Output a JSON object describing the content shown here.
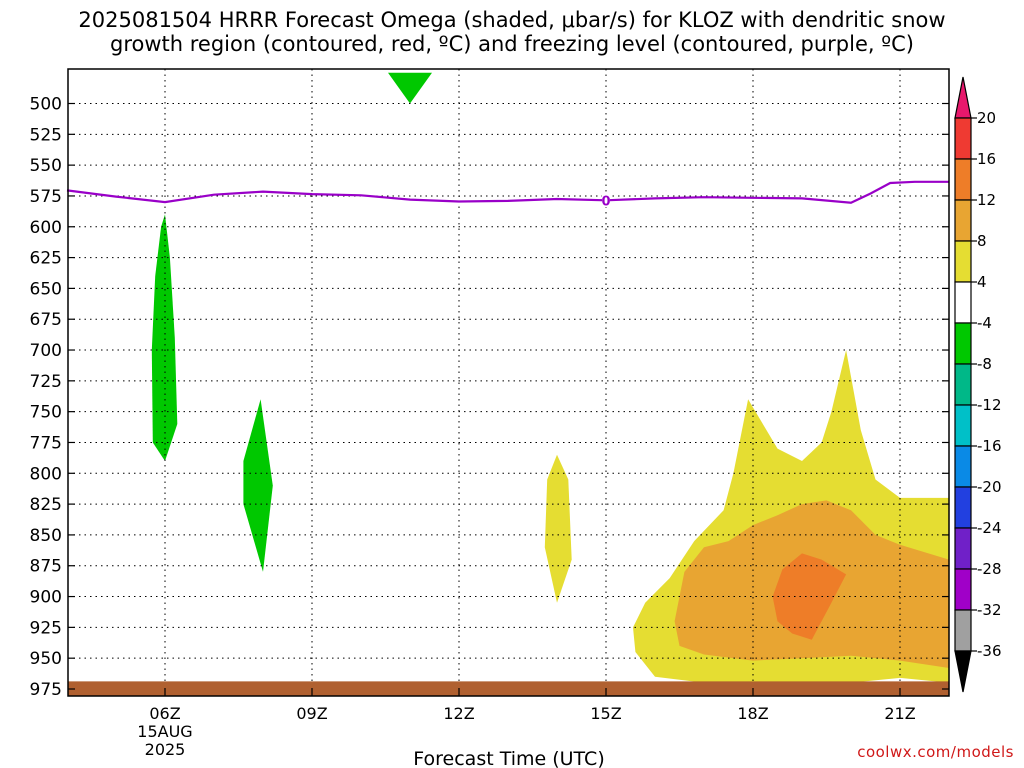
{
  "title": {
    "line1": "2025081504 HRRR Forecast Omega (shaded, μbar/s) for KLOZ with dendritic snow",
    "line2": "growth region (contoured, red, ºC) and freezing level (contoured, purple, ºC)"
  },
  "credit": "coolwx.com/models",
  "chart_data": {
    "type": "heatmap",
    "xlabel": "Forecast Time (UTC)",
    "ylabel": "",
    "x_unit": "hours UTC, 15 Aug 2025",
    "xlim": [
      4,
      22
    ],
    "ylim": [
      975,
      475
    ],
    "y_ticks": [
      500,
      525,
      550,
      575,
      600,
      625,
      650,
      675,
      700,
      725,
      750,
      775,
      800,
      825,
      850,
      875,
      900,
      925,
      950,
      975
    ],
    "x_ticks": [
      {
        "hour": 6,
        "label": "06Z",
        "sub1": "15AUG",
        "sub2": "2025"
      },
      {
        "hour": 9,
        "label": "09Z",
        "sub1": "",
        "sub2": ""
      },
      {
        "hour": 12,
        "label": "12Z",
        "sub1": "",
        "sub2": ""
      },
      {
        "hour": 15,
        "label": "15Z",
        "sub1": "",
        "sub2": ""
      },
      {
        "hour": 18,
        "label": "18Z",
        "sub1": "",
        "sub2": ""
      },
      {
        "hour": 21,
        "label": "21Z",
        "sub1": "",
        "sub2": ""
      }
    ],
    "grid": true,
    "colorbar": {
      "labels": [
        "20",
        "16",
        "12",
        "8",
        "4",
        "-4",
        "-8",
        "-12",
        "-16",
        "-20",
        "-24",
        "-28",
        "-32",
        "-36"
      ],
      "bands": [
        {
          "color": "#e8186c"
        },
        {
          "color": "#ef3a32"
        },
        {
          "color": "#ee7d28"
        },
        {
          "color": "#e8a532"
        },
        {
          "color": "#e5dd32"
        },
        {
          "color": "#ffffff"
        },
        {
          "color": "#00c800"
        },
        {
          "color": "#00b888"
        },
        {
          "color": "#00c0c8"
        },
        {
          "color": "#0a8ae6"
        },
        {
          "color": "#2240e0"
        },
        {
          "color": "#7020c8"
        },
        {
          "color": "#a000c8"
        },
        {
          "color": "#a0a0a0"
        },
        {
          "color": "#000000"
        }
      ]
    },
    "freezing_level": {
      "color": "#9900c8",
      "label": "0",
      "label_hour": 15.0,
      "points": [
        [
          4.0,
          570.5
        ],
        [
          5.0,
          575.5
        ],
        [
          6.0,
          580.0
        ],
        [
          7.0,
          574.0
        ],
        [
          8.0,
          571.5
        ],
        [
          9.0,
          573.5
        ],
        [
          10.0,
          574.5
        ],
        [
          11.0,
          578.0
        ],
        [
          12.0,
          579.5
        ],
        [
          13.0,
          579.0
        ],
        [
          14.0,
          577.5
        ],
        [
          15.0,
          578.5
        ],
        [
          16.0,
          577.0
        ],
        [
          17.0,
          576.0
        ],
        [
          18.0,
          576.5
        ],
        [
          19.0,
          577.0
        ],
        [
          20.0,
          580.5
        ],
        [
          20.4,
          573.0
        ],
        [
          20.8,
          564.5
        ],
        [
          21.3,
          563.5
        ],
        [
          22.0,
          563.5
        ]
      ]
    },
    "shaded_regions": [
      {
        "name": "descent-0600",
        "value": -6,
        "color": "#00c800",
        "points": [
          [
            6.0,
            590.0
          ],
          [
            6.1,
            625.0
          ],
          [
            6.2,
            690.0
          ],
          [
            6.25,
            760.0
          ],
          [
            6.0,
            790.0
          ],
          [
            5.75,
            775.0
          ],
          [
            5.73,
            700.0
          ],
          [
            5.8,
            640.0
          ],
          [
            5.92,
            600.0
          ]
        ]
      },
      {
        "name": "descent-0800",
        "value": -6,
        "color": "#00c800",
        "points": [
          [
            7.95,
            740.0
          ],
          [
            8.2,
            810.0
          ],
          [
            8.0,
            880.0
          ],
          [
            7.6,
            825.0
          ],
          [
            7.6,
            790.0
          ]
        ]
      },
      {
        "name": "descent-1100",
        "value": -6,
        "color": "#00c800",
        "points": [
          [
            10.55,
            475.0
          ],
          [
            11.45,
            475.0
          ],
          [
            11.0,
            500.0
          ]
        ]
      },
      {
        "name": "ascent-1400",
        "value": 6,
        "color": "#e5dd32",
        "points": [
          [
            14.0,
            785.0
          ],
          [
            14.23,
            805.0
          ],
          [
            14.3,
            870.0
          ],
          [
            14.0,
            905.0
          ],
          [
            13.75,
            860.0
          ],
          [
            13.8,
            805.0
          ]
        ]
      },
      {
        "name": "ascent-outer",
        "value": 6,
        "color": "#e5dd32",
        "points": [
          [
            15.55,
            925.0
          ],
          [
            15.8,
            905.0
          ],
          [
            16.3,
            885.0
          ],
          [
            16.8,
            855.0
          ],
          [
            17.4,
            830.0
          ],
          [
            17.6,
            800.0
          ],
          [
            17.9,
            740.0
          ],
          [
            18.5,
            780.0
          ],
          [
            19.0,
            790.0
          ],
          [
            19.4,
            775.0
          ],
          [
            19.6,
            750.0
          ],
          [
            19.9,
            700.0
          ],
          [
            20.2,
            765.0
          ],
          [
            20.5,
            805.0
          ],
          [
            21.0,
            820.0
          ],
          [
            22.0,
            820.0
          ],
          [
            22.0,
            970.0
          ],
          [
            21.0,
            966.0
          ],
          [
            20.0,
            970.0
          ],
          [
            19.0,
            972.0
          ],
          [
            18.0,
            972.0
          ],
          [
            17.0,
            970.0
          ],
          [
            16.0,
            965.0
          ],
          [
            15.6,
            945.0
          ]
        ]
      },
      {
        "name": "ascent-inner",
        "value": 10,
        "color": "#e8a532",
        "points": [
          [
            16.4,
            920.0
          ],
          [
            16.6,
            880.0
          ],
          [
            17.0,
            860.0
          ],
          [
            17.5,
            855.0
          ],
          [
            18.0,
            842.0
          ],
          [
            18.5,
            834.0
          ],
          [
            19.0,
            825.0
          ],
          [
            19.5,
            822.0
          ],
          [
            20.0,
            830.0
          ],
          [
            20.5,
            850.0
          ],
          [
            21.0,
            858.0
          ],
          [
            22.0,
            870.0
          ],
          [
            22.0,
            958.0
          ],
          [
            21.0,
            952.0
          ],
          [
            20.0,
            948.0
          ],
          [
            19.0,
            950.0
          ],
          [
            18.0,
            952.0
          ],
          [
            17.0,
            947.0
          ],
          [
            16.5,
            940.0
          ]
        ]
      },
      {
        "name": "ascent-core",
        "value": 14,
        "color": "#ee7d28",
        "points": [
          [
            18.4,
            900.0
          ],
          [
            18.6,
            878.0
          ],
          [
            19.0,
            865.0
          ],
          [
            19.4,
            870.0
          ],
          [
            19.9,
            882.0
          ],
          [
            19.6,
            905.0
          ],
          [
            19.2,
            935.0
          ],
          [
            18.8,
            930.0
          ],
          [
            18.5,
            920.0
          ]
        ]
      }
    ],
    "surface": {
      "color": "#b06030",
      "top": 968,
      "label": "surface"
    }
  }
}
